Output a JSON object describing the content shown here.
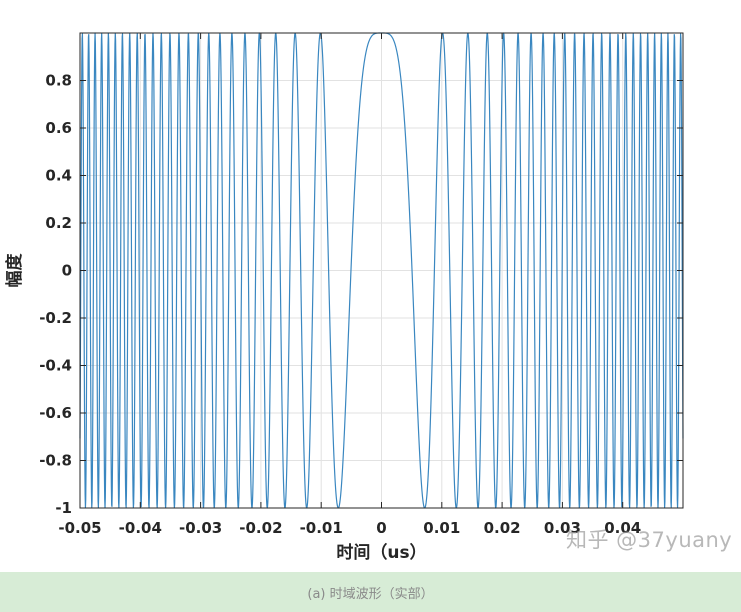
{
  "chart_data": {
    "type": "line",
    "xlabel": "时间（us）",
    "ylabel": "幅度",
    "xlim": [
      -0.05,
      0.05
    ],
    "ylim": [
      -1,
      1
    ],
    "grid": true,
    "x_ticks": [
      "-0.05",
      "-0.04",
      "-0.03",
      "-0.02",
      "-0.01",
      "0",
      "0.01",
      "0.02",
      "0.03",
      "0.04"
    ],
    "y_ticks": [
      "0.8",
      "0.6",
      "0.4",
      "0.2",
      "0",
      "-0.2",
      "-0.4",
      "-0.6",
      "-0.8",
      "-1"
    ],
    "series": [
      {
        "function": "cos(pi*k*t^2)",
        "k_per_us2": 19500,
        "x_range": [
          -0.05,
          0.05
        ],
        "samples": 2000
      }
    ],
    "colors": {
      "line": "#3a87c0",
      "grid": "#e2e2e2",
      "axis": "#262626"
    }
  },
  "watermark": "知乎 @37yuany",
  "caption": "(a) 时域波形（实部）"
}
